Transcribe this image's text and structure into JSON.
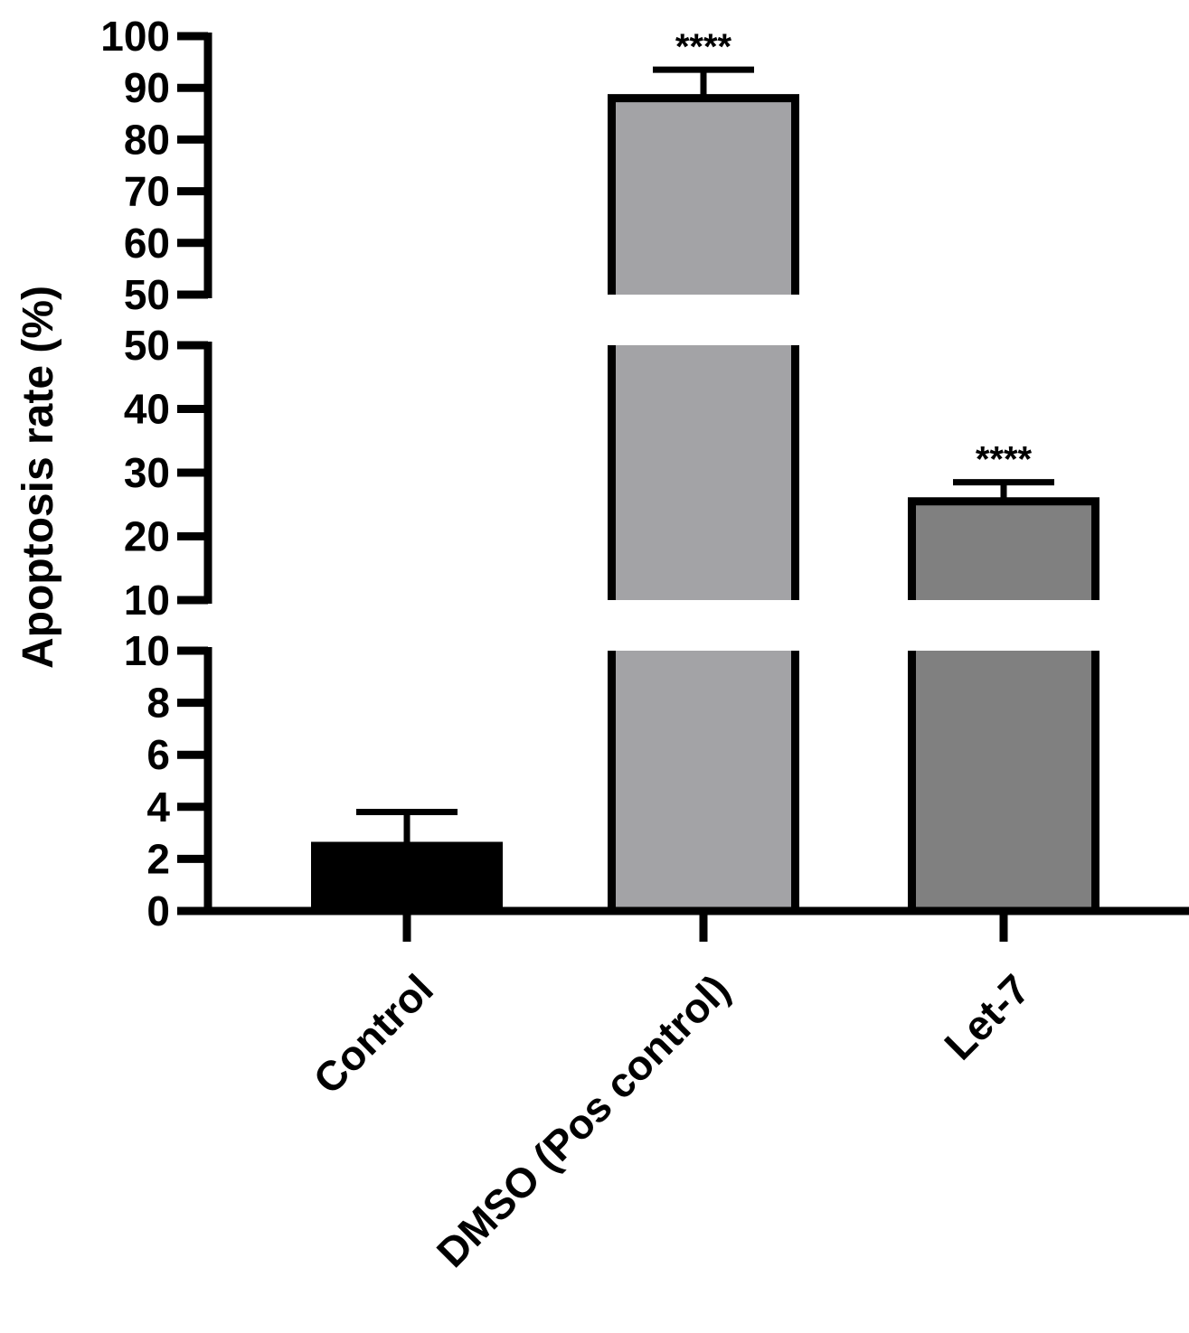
{
  "chart_data": {
    "type": "bar",
    "ylabel": "Apoptosis rate (%)",
    "xlabel": "",
    "categories": [
      "Control",
      "DMSO (Pos control)",
      "Let-7"
    ],
    "series": [
      {
        "values": [
          2.5,
          88,
          25.5
        ],
        "error": [
          1.3,
          5.5,
          3
        ],
        "significance": [
          "",
          "****",
          "****"
        ],
        "colors": [
          "#000000",
          "#a3a3a6",
          "#808080"
        ]
      }
    ],
    "y_axis_segments": [
      {
        "range": [
          0,
          10
        ],
        "ticks": [
          0,
          2,
          4,
          6,
          8,
          10
        ],
        "tick_labels": [
          "0",
          "2",
          "4",
          "6",
          "8",
          "10"
        ]
      },
      {
        "range": [
          10,
          50
        ],
        "ticks": [
          10,
          20,
          30,
          40,
          50
        ],
        "tick_labels": [
          "10",
          "20",
          "30",
          "40",
          "50"
        ]
      },
      {
        "range": [
          50,
          100
        ],
        "ticks": [
          50,
          60,
          70,
          80,
          90,
          100
        ],
        "tick_labels": [
          "50",
          "60",
          "70",
          "80",
          "90",
          "100"
        ]
      }
    ],
    "ylim": [
      0,
      100
    ],
    "broken_axis": true,
    "grid": false,
    "legend": "none"
  }
}
